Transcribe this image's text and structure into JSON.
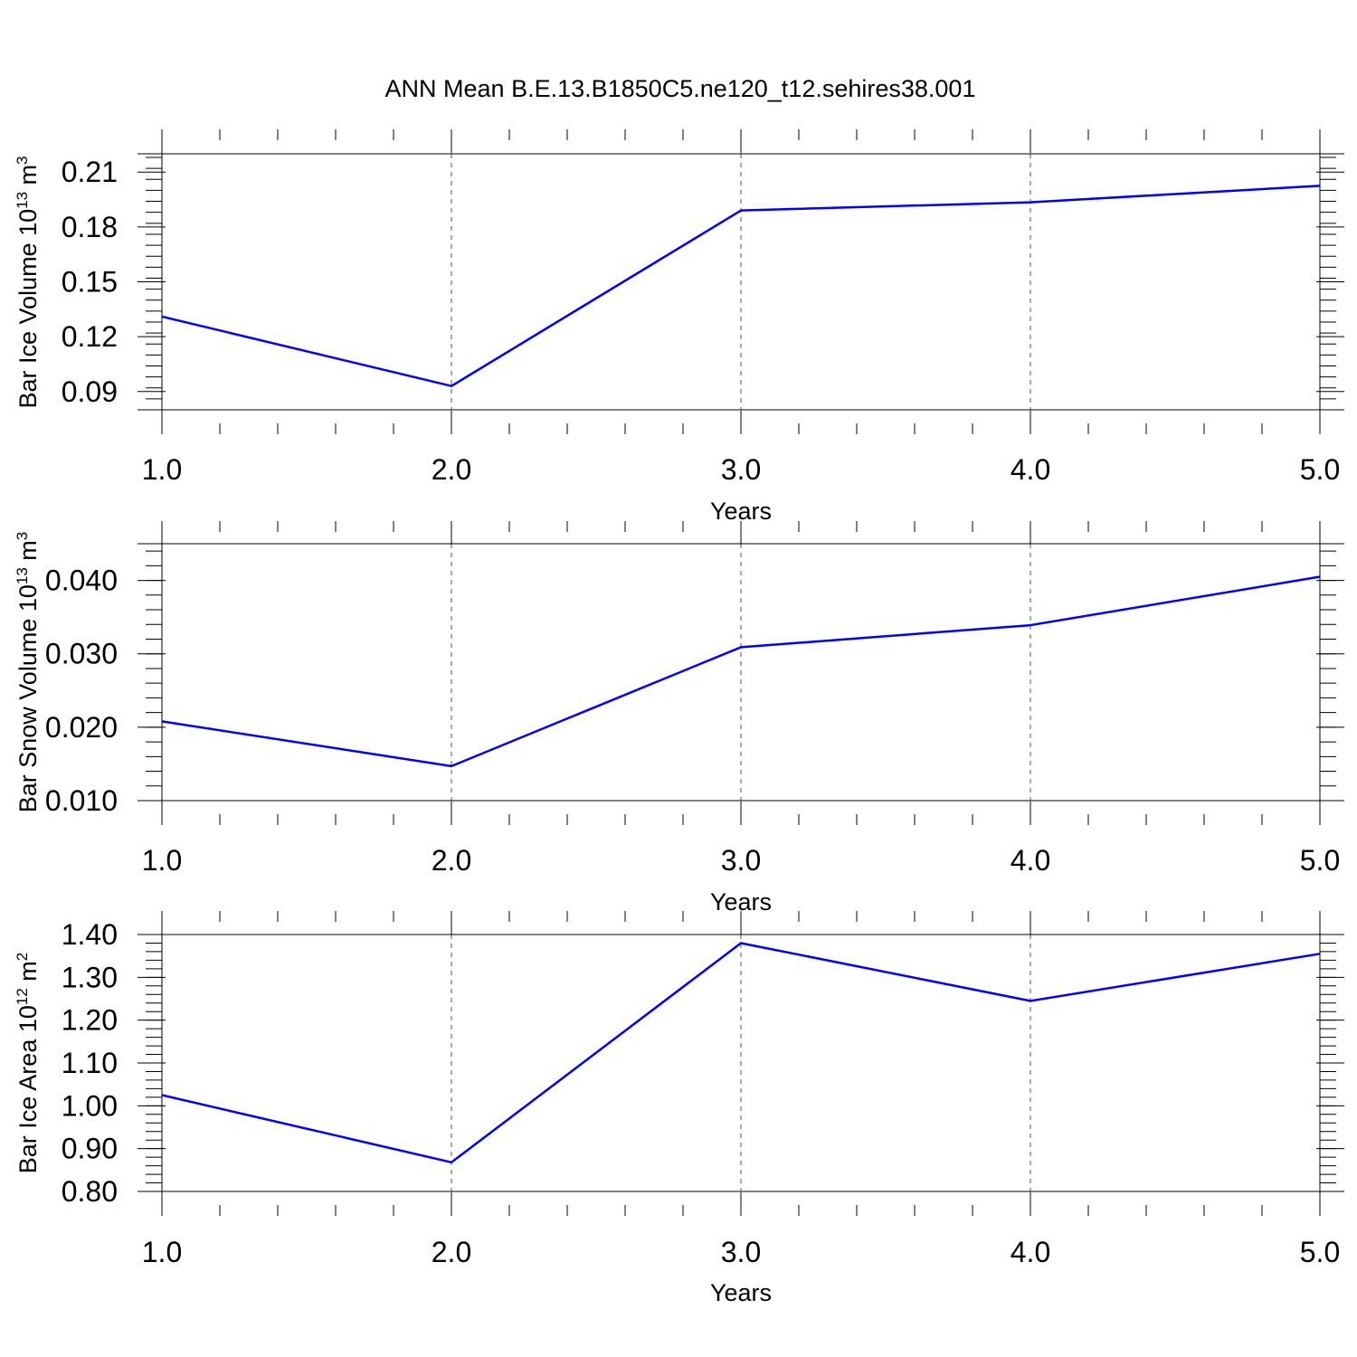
{
  "figure": {
    "title": "ANN Mean B.E.13.B1850C5.ne120_t12.sehires38.001",
    "line_color": "#0000ff"
  },
  "chart_data": [
    {
      "type": "line",
      "title": "",
      "xlabel": "Years",
      "ylabel": "Bar Ice Volume 10",
      "ylabel_exponent": "13",
      "ylabel_unit": "m",
      "ylabel_unit_exponent": "3",
      "x": [
        1.0,
        2.0,
        3.0,
        4.0,
        5.0
      ],
      "x_tick_labels": [
        "1.0",
        "2.0",
        "3.0",
        "4.0",
        "5.0"
      ],
      "y_ticks": [
        0.09,
        0.12,
        0.15,
        0.18,
        0.21
      ],
      "y_tick_labels": [
        "0.09",
        "0.12",
        "0.15",
        "0.18",
        "0.21"
      ],
      "y_minor_step": 0.006,
      "xlim": [
        1.0,
        5.0
      ],
      "ylim": [
        0.08,
        0.22
      ],
      "grid": "vertical dashed at major x ticks",
      "series": [
        {
          "values": [
            0.131,
            0.093,
            0.189,
            0.1935,
            0.2025
          ]
        }
      ]
    },
    {
      "type": "line",
      "title": "",
      "xlabel": "Years",
      "ylabel": "Bar Snow Volume 10",
      "ylabel_exponent": "13",
      "ylabel_unit": "m",
      "ylabel_unit_exponent": "3",
      "x": [
        1.0,
        2.0,
        3.0,
        4.0,
        5.0
      ],
      "x_tick_labels": [
        "1.0",
        "2.0",
        "3.0",
        "4.0",
        "5.0"
      ],
      "y_ticks": [
        0.01,
        0.02,
        0.03,
        0.04
      ],
      "y_tick_labels": [
        "0.010",
        "0.020",
        "0.030",
        "0.040"
      ],
      "y_minor_step": 0.002,
      "xlim": [
        1.0,
        5.0
      ],
      "ylim": [
        0.01,
        0.045
      ],
      "grid": "vertical dashed at major x ticks",
      "series": [
        {
          "values": [
            0.0208,
            0.0147,
            0.0309,
            0.0339,
            0.0405
          ]
        }
      ]
    },
    {
      "type": "line",
      "title": "",
      "xlabel": "Years",
      "ylabel": "Bar Ice Area 10",
      "ylabel_exponent": "12",
      "ylabel_unit": "m",
      "ylabel_unit_exponent": "2",
      "x": [
        1.0,
        2.0,
        3.0,
        4.0,
        5.0
      ],
      "x_tick_labels": [
        "1.0",
        "2.0",
        "3.0",
        "4.0",
        "5.0"
      ],
      "y_ticks": [
        0.8,
        0.9,
        1.0,
        1.1,
        1.2,
        1.3,
        1.4
      ],
      "y_tick_labels": [
        "0.80",
        "0.90",
        "1.00",
        "1.10",
        "1.20",
        "1.30",
        "1.40"
      ],
      "y_minor_step": 0.02,
      "xlim": [
        1.0,
        5.0
      ],
      "ylim": [
        0.8,
        1.4
      ],
      "grid": "vertical dashed at major x ticks",
      "series": [
        {
          "values": [
            1.025,
            0.868,
            1.38,
            1.245,
            1.355
          ]
        }
      ]
    }
  ]
}
